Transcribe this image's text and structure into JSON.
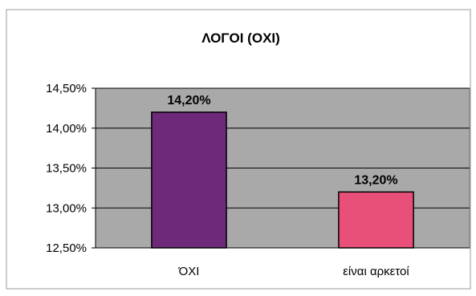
{
  "chart_data": {
    "type": "bar",
    "title": "ΛΟΓΟΙ (ΟΧΙ)",
    "xlabel": "",
    "ylabel": "",
    "categories": [
      "ΌΧΙ",
      "είναι αρκετοί"
    ],
    "values": [
      14.2,
      13.2
    ],
    "data_labels": [
      "14,20%",
      "13,20%"
    ],
    "ylim": [
      12.5,
      14.5
    ],
    "yticks": [
      12.5,
      13.0,
      13.5,
      14.0,
      14.5
    ],
    "ytick_labels": [
      "12,50%",
      "13,00%",
      "13,50%",
      "14,00%",
      "14,50%"
    ],
    "grid": true,
    "legend": "none",
    "colors": {
      "bars": [
        "#6e2a7a",
        "#e8507a"
      ],
      "plot_background": "#a9a9a9",
      "gridline": "#000000",
      "bar_outline": "#000000"
    }
  }
}
